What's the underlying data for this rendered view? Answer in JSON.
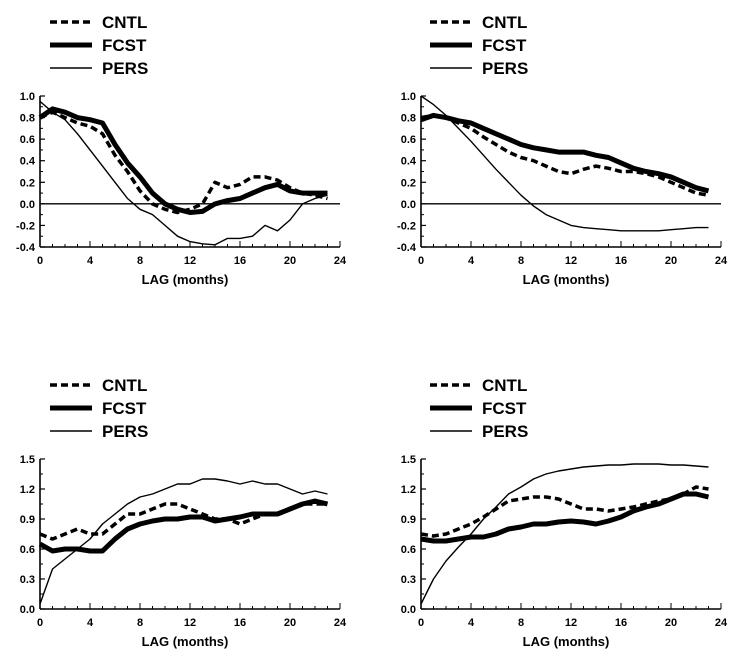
{
  "chart_data": [
    {
      "type": "line",
      "panel": "top-left",
      "xlabel": "LAG (months)",
      "ylabel": "",
      "xlim": [
        0,
        24
      ],
      "ylim": [
        -0.4,
        1.0
      ],
      "xticks": [
        0,
        4,
        8,
        12,
        16,
        20,
        24
      ],
      "yticks": [
        -0.4,
        -0.2,
        0.0,
        0.2,
        0.4,
        0.6,
        0.8,
        1.0
      ],
      "ytick_labels": [
        "-0.4",
        "-0.2",
        "0.0",
        "0.2",
        "0.4",
        "0.6",
        "0.8",
        "1.0"
      ],
      "zero_line": true,
      "legend": [
        "CNTL",
        "FCST",
        "PERS"
      ],
      "x": [
        0,
        1,
        2,
        3,
        4,
        5,
        6,
        7,
        8,
        9,
        10,
        11,
        12,
        13,
        14,
        15,
        16,
        17,
        18,
        19,
        20,
        21,
        22,
        23
      ],
      "series": [
        {
          "name": "CNTL",
          "style": "dashed",
          "values": [
            0.8,
            0.85,
            0.8,
            0.75,
            0.72,
            0.65,
            0.45,
            0.3,
            0.12,
            0.0,
            -0.05,
            -0.08,
            -0.05,
            0.0,
            0.2,
            0.15,
            0.18,
            0.25,
            0.25,
            0.22,
            0.15,
            0.1,
            0.08,
            0.05
          ]
        },
        {
          "name": "FCST",
          "style": "thick",
          "values": [
            0.8,
            0.88,
            0.85,
            0.8,
            0.78,
            0.75,
            0.55,
            0.38,
            0.25,
            0.1,
            0.0,
            -0.05,
            -0.08,
            -0.07,
            0.0,
            0.03,
            0.05,
            0.1,
            0.15,
            0.18,
            0.12,
            0.1,
            0.1,
            0.1
          ]
        },
        {
          "name": "PERS",
          "style": "thin",
          "values": [
            0.95,
            0.85,
            0.78,
            0.65,
            0.5,
            0.35,
            0.2,
            0.05,
            -0.05,
            -0.1,
            -0.2,
            -0.3,
            -0.35,
            -0.37,
            -0.38,
            -0.32,
            -0.32,
            -0.3,
            -0.2,
            -0.25,
            -0.15,
            0.0,
            0.05,
            0.08
          ]
        }
      ]
    },
    {
      "type": "line",
      "panel": "top-right",
      "xlabel": "LAG (months)",
      "ylabel": "",
      "xlim": [
        0,
        24
      ],
      "ylim": [
        -0.4,
        1.0
      ],
      "xticks": [
        0,
        4,
        8,
        12,
        16,
        20,
        24
      ],
      "yticks": [
        -0.4,
        -0.2,
        0.0,
        0.2,
        0.4,
        0.6,
        0.8,
        1.0
      ],
      "ytick_labels": [
        "-0.4",
        "-0.2",
        "0.0",
        "0.2",
        "0.4",
        "0.6",
        "0.8",
        "1.0"
      ],
      "zero_line": true,
      "legend": [
        "CNTL",
        "FCST",
        "PERS"
      ],
      "x": [
        0,
        1,
        2,
        3,
        4,
        5,
        6,
        7,
        8,
        9,
        10,
        11,
        12,
        13,
        14,
        15,
        16,
        17,
        18,
        19,
        20,
        21,
        22,
        23
      ],
      "series": [
        {
          "name": "CNTL",
          "style": "dashed",
          "values": [
            0.8,
            0.82,
            0.8,
            0.75,
            0.7,
            0.62,
            0.55,
            0.48,
            0.43,
            0.4,
            0.35,
            0.3,
            0.28,
            0.32,
            0.35,
            0.33,
            0.3,
            0.3,
            0.28,
            0.25,
            0.2,
            0.15,
            0.1,
            0.08
          ]
        },
        {
          "name": "FCST",
          "style": "thick",
          "values": [
            0.78,
            0.82,
            0.8,
            0.77,
            0.75,
            0.7,
            0.65,
            0.6,
            0.55,
            0.52,
            0.5,
            0.48,
            0.48,
            0.48,
            0.45,
            0.43,
            0.38,
            0.33,
            0.3,
            0.28,
            0.25,
            0.2,
            0.15,
            0.12
          ]
        },
        {
          "name": "PERS",
          "style": "thin",
          "values": [
            1.0,
            0.92,
            0.82,
            0.7,
            0.58,
            0.45,
            0.32,
            0.2,
            0.08,
            -0.02,
            -0.1,
            -0.15,
            -0.2,
            -0.22,
            -0.23,
            -0.24,
            -0.25,
            -0.25,
            -0.25,
            -0.25,
            -0.24,
            -0.23,
            -0.22,
            -0.22
          ]
        }
      ]
    },
    {
      "type": "line",
      "panel": "bottom-left",
      "xlabel": "LAG (months)",
      "ylabel": "",
      "xlim": [
        0,
        24
      ],
      "ylim": [
        0.0,
        1.5
      ],
      "xticks": [
        0,
        4,
        8,
        12,
        16,
        20,
        24
      ],
      "yticks": [
        0.0,
        0.3,
        0.6,
        0.9,
        1.2,
        1.5
      ],
      "ytick_labels": [
        "0.0",
        "0.3",
        "0.6",
        "0.9",
        "1.2",
        "1.5"
      ],
      "zero_line": false,
      "legend": [
        "CNTL",
        "FCST",
        "PERS"
      ],
      "x": [
        0,
        1,
        2,
        3,
        4,
        5,
        6,
        7,
        8,
        9,
        10,
        11,
        12,
        13,
        14,
        15,
        16,
        17,
        18,
        19,
        20,
        21,
        22,
        23
      ],
      "series": [
        {
          "name": "CNTL",
          "style": "dashed",
          "values": [
            0.75,
            0.7,
            0.75,
            0.8,
            0.75,
            0.75,
            0.85,
            0.95,
            0.95,
            1.0,
            1.05,
            1.05,
            1.0,
            0.95,
            0.9,
            0.9,
            0.85,
            0.9,
            0.95,
            0.95,
            1.0,
            1.05,
            1.05,
            1.05
          ]
        },
        {
          "name": "FCST",
          "style": "thick",
          "values": [
            0.65,
            0.58,
            0.6,
            0.6,
            0.58,
            0.58,
            0.7,
            0.8,
            0.85,
            0.88,
            0.9,
            0.9,
            0.92,
            0.92,
            0.88,
            0.9,
            0.92,
            0.95,
            0.95,
            0.95,
            1.0,
            1.05,
            1.08,
            1.05
          ]
        },
        {
          "name": "PERS",
          "style": "thin",
          "values": [
            0.05,
            0.4,
            0.5,
            0.6,
            0.7,
            0.85,
            0.95,
            1.05,
            1.12,
            1.15,
            1.2,
            1.25,
            1.25,
            1.3,
            1.3,
            1.28,
            1.25,
            1.28,
            1.25,
            1.25,
            1.2,
            1.15,
            1.18,
            1.15
          ]
        }
      ]
    },
    {
      "type": "line",
      "panel": "bottom-right",
      "xlabel": "LAG (months)",
      "ylabel": "",
      "xlim": [
        0,
        24
      ],
      "ylim": [
        0.0,
        1.5
      ],
      "xticks": [
        0,
        4,
        8,
        12,
        16,
        20,
        24
      ],
      "yticks": [
        0.0,
        0.3,
        0.6,
        0.9,
        1.2,
        1.5
      ],
      "ytick_labels": [
        "0.0",
        "0.3",
        "0.6",
        "0.9",
        "1.2",
        "1.5"
      ],
      "zero_line": false,
      "legend": [
        "CNTL",
        "FCST",
        "PERS"
      ],
      "x": [
        0,
        1,
        2,
        3,
        4,
        5,
        6,
        7,
        8,
        9,
        10,
        11,
        12,
        13,
        14,
        15,
        16,
        17,
        18,
        19,
        20,
        21,
        22,
        23
      ],
      "series": [
        {
          "name": "CNTL",
          "style": "dashed",
          "values": [
            0.75,
            0.73,
            0.75,
            0.8,
            0.85,
            0.92,
            1.0,
            1.08,
            1.1,
            1.12,
            1.12,
            1.1,
            1.05,
            1.0,
            1.0,
            0.98,
            1.0,
            1.02,
            1.05,
            1.08,
            1.1,
            1.15,
            1.22,
            1.2
          ]
        },
        {
          "name": "FCST",
          "style": "thick",
          "values": [
            0.7,
            0.68,
            0.68,
            0.7,
            0.72,
            0.72,
            0.75,
            0.8,
            0.82,
            0.85,
            0.85,
            0.87,
            0.88,
            0.87,
            0.85,
            0.88,
            0.92,
            0.98,
            1.02,
            1.05,
            1.1,
            1.15,
            1.15,
            1.12
          ]
        },
        {
          "name": "PERS",
          "style": "thin",
          "values": [
            0.05,
            0.3,
            0.48,
            0.62,
            0.75,
            0.9,
            1.02,
            1.15,
            1.22,
            1.3,
            1.35,
            1.38,
            1.4,
            1.42,
            1.43,
            1.44,
            1.44,
            1.45,
            1.45,
            1.45,
            1.44,
            1.44,
            1.43,
            1.42
          ]
        }
      ]
    }
  ]
}
